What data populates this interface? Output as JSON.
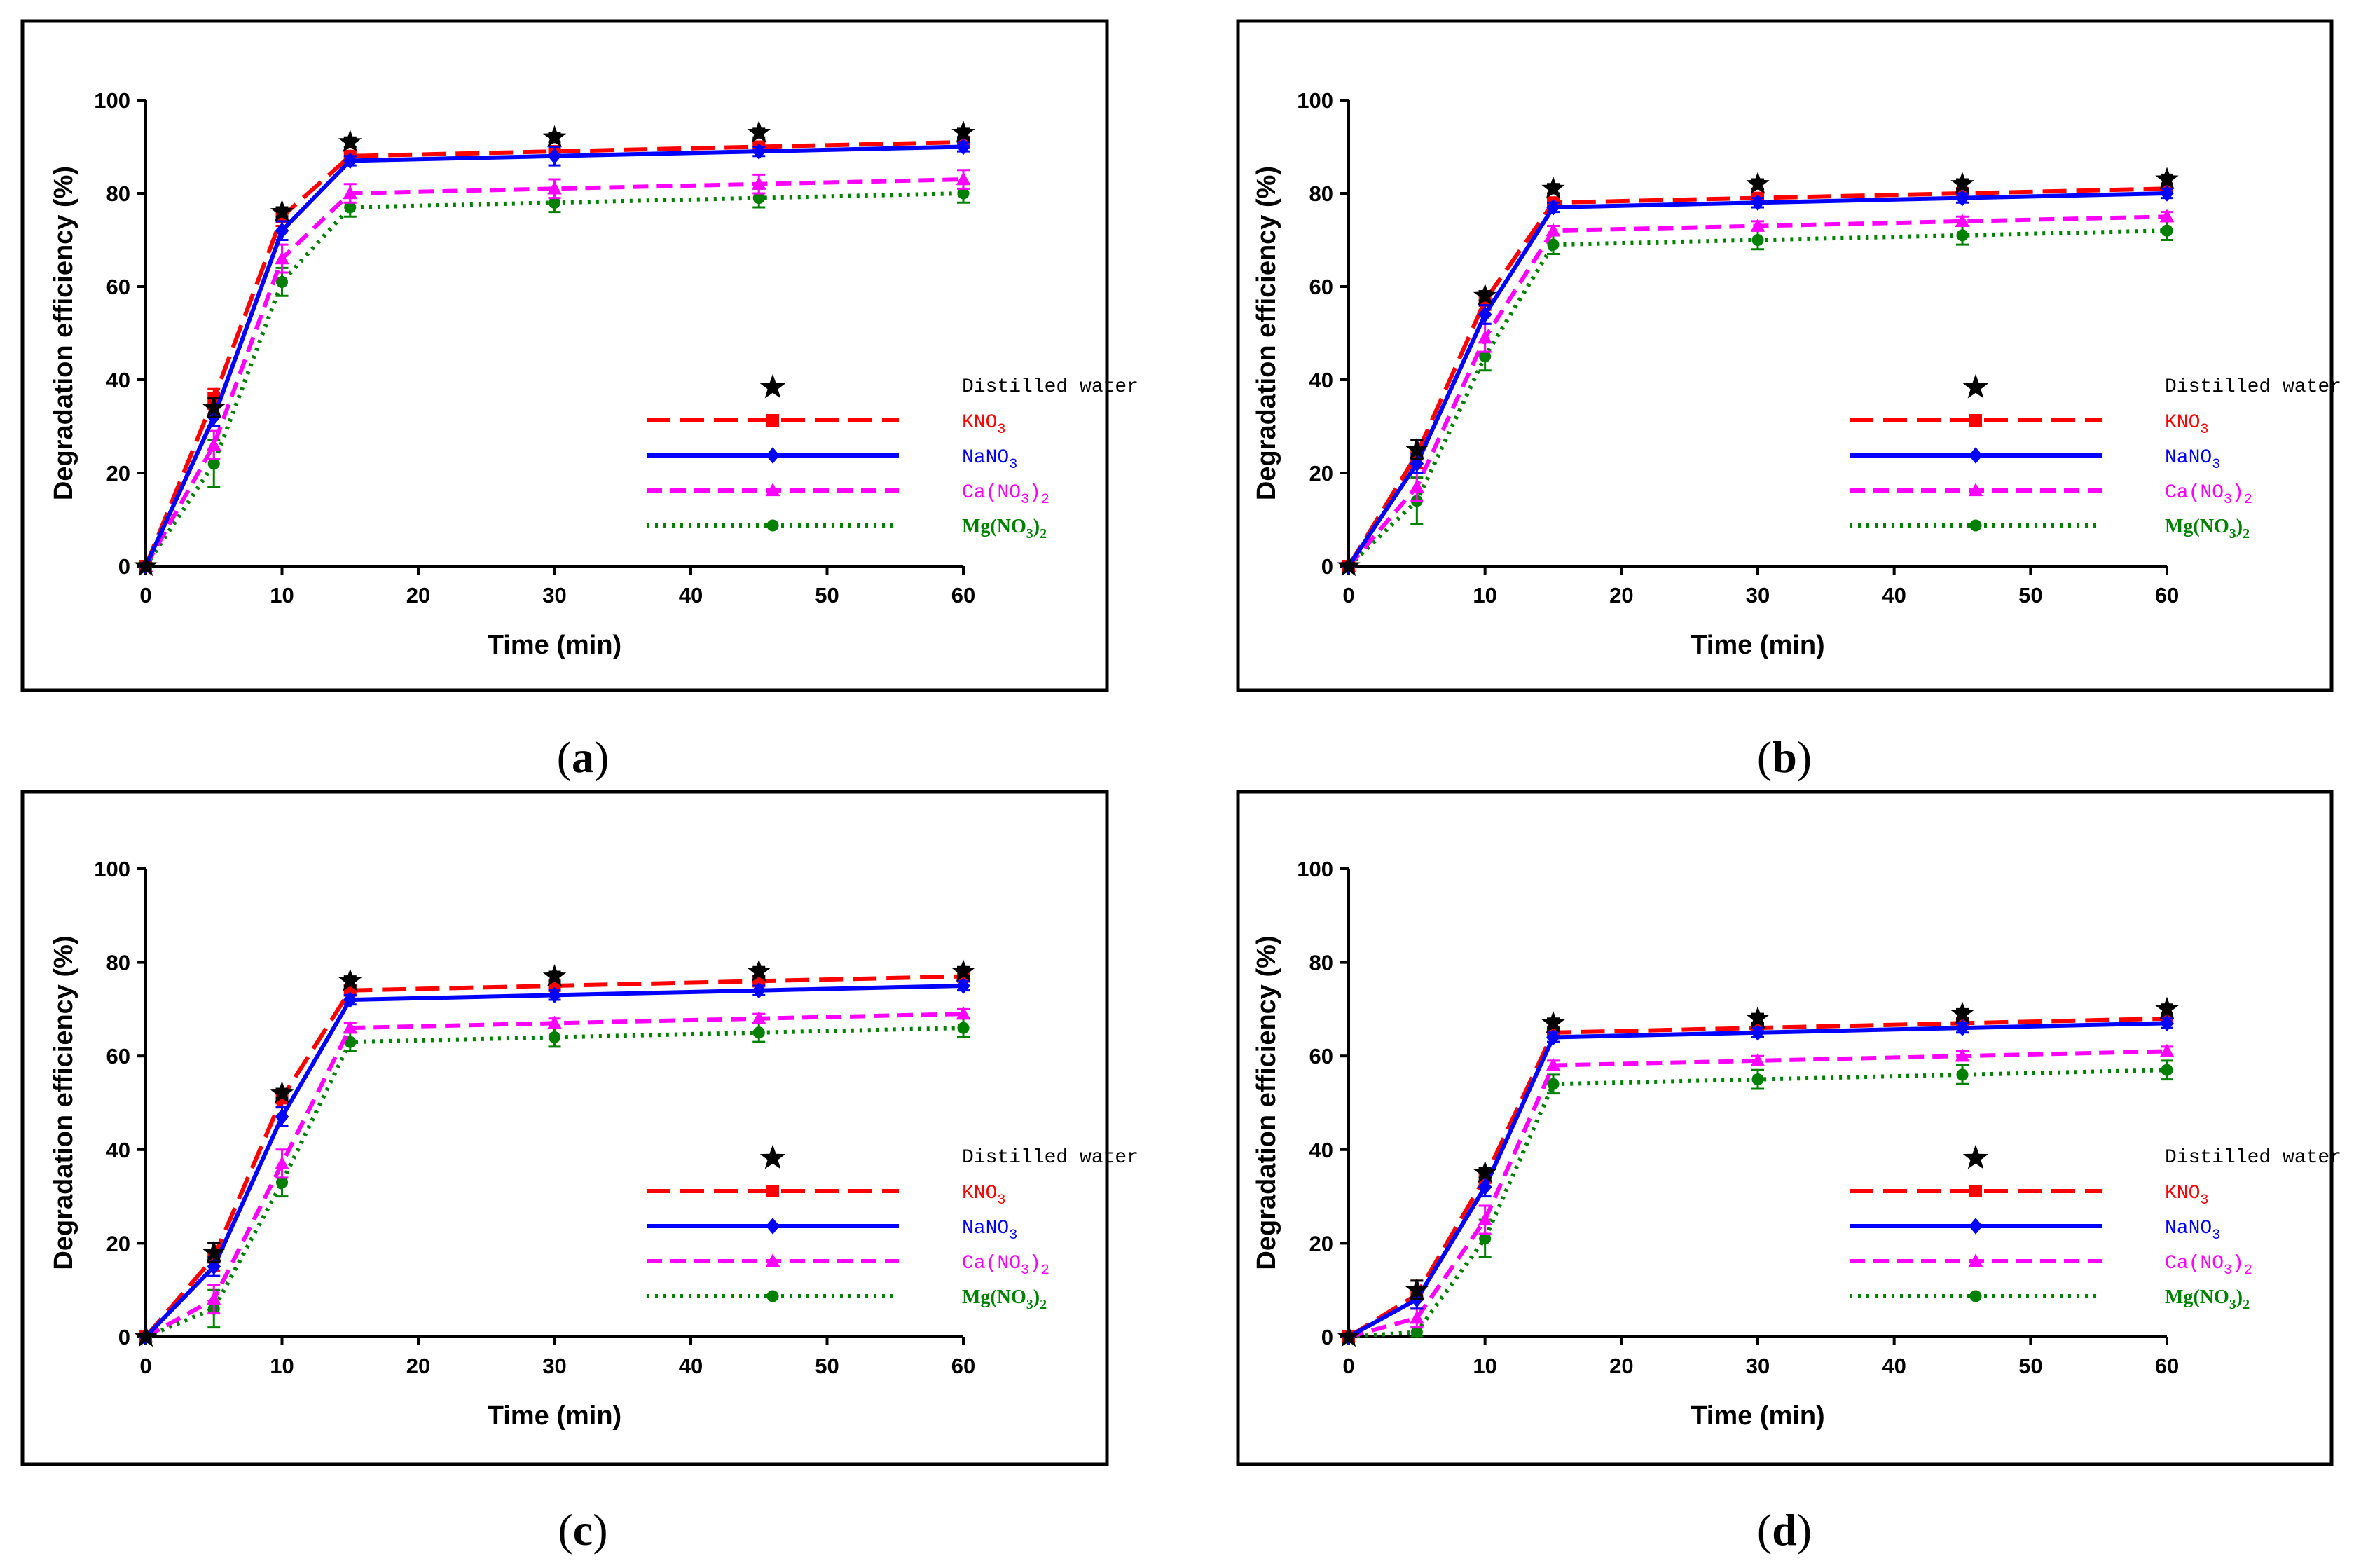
{
  "colors": {
    "distilled_water": "#000000",
    "KNO3": "#ff0000",
    "NaNO3": "#0000ff",
    "CaNO32": "#ff00ff",
    "MgNO32": "#008000"
  },
  "chart_data": [
    {
      "type": "line",
      "panel_label": "a",
      "caption": "(a)",
      "xlabel": "Time (min)",
      "ylabel": "Degradation efficiency (%)",
      "xlim": [
        0,
        60
      ],
      "ylim": [
        0,
        100
      ],
      "x_ticks": [
        "0",
        "10",
        "20",
        "30",
        "40",
        "50",
        "60"
      ],
      "y_ticks": [
        "0",
        "20",
        "40",
        "60",
        "80",
        "100"
      ],
      "legend_position": "lower-right",
      "x": [
        0,
        5,
        10,
        15,
        30,
        45,
        60
      ],
      "series": [
        {
          "key": "distilled_water",
          "name": "Distilled water",
          "label_parts": [
            "Distilled water"
          ],
          "marker": "star",
          "line": "none",
          "values": [
            0,
            34,
            76,
            91,
            92,
            93,
            93
          ],
          "errors": [
            0,
            2,
            1,
            1,
            1,
            1,
            1
          ]
        },
        {
          "key": "KNO3",
          "name": "KNO3",
          "label_parts": [
            "KNO",
            "3"
          ],
          "marker": "square",
          "line": "longdash",
          "values": [
            0,
            36,
            75,
            88,
            89,
            90,
            91
          ],
          "errors": [
            0,
            2,
            2,
            1,
            1,
            1,
            1
          ]
        },
        {
          "key": "NaNO3",
          "name": "NaNO3",
          "label_parts": [
            "NaNO",
            "3"
          ],
          "marker": "diamond",
          "line": "solid",
          "values": [
            0,
            32,
            72,
            87,
            88,
            89,
            90
          ],
          "errors": [
            0,
            2,
            2,
            1,
            2,
            1,
            1
          ]
        },
        {
          "key": "CaNO32",
          "name": "Ca(NO3)2",
          "label_parts": [
            "Ca(NO",
            "3",
            ")",
            "2"
          ],
          "marker": "triangle",
          "line": "dash",
          "values": [
            0,
            26,
            66,
            80,
            81,
            82,
            83
          ],
          "errors": [
            0,
            3,
            3,
            2,
            2,
            2,
            2
          ]
        },
        {
          "key": "MgNO32",
          "name": "Mg(NO3)2",
          "label_parts": [
            "Mg(NO",
            "3",
            ")",
            "2"
          ],
          "marker": "circle",
          "line": "dot",
          "values": [
            0,
            22,
            61,
            77,
            78,
            79,
            80
          ],
          "errors": [
            0,
            5,
            3,
            2,
            2,
            2,
            2
          ]
        }
      ]
    },
    {
      "type": "line",
      "panel_label": "b",
      "caption": "(b)",
      "xlabel": "Time (min)",
      "ylabel": "Degradation efficiency (%)",
      "xlim": [
        0,
        60
      ],
      "ylim": [
        0,
        100
      ],
      "x_ticks": [
        "0",
        "10",
        "20",
        "30",
        "40",
        "50",
        "60"
      ],
      "y_ticks": [
        "0",
        "20",
        "40",
        "60",
        "80",
        "100"
      ],
      "legend_position": "lower-right",
      "x": [
        0,
        5,
        10,
        15,
        30,
        45,
        60
      ],
      "series": [
        {
          "key": "distilled_water",
          "name": "Distilled water",
          "label_parts": [
            "Distilled water"
          ],
          "marker": "star",
          "line": "none",
          "values": [
            0,
            25,
            58,
            81,
            82,
            82,
            83
          ],
          "errors": [
            0,
            2,
            1,
            1,
            1,
            1,
            1
          ]
        },
        {
          "key": "KNO3",
          "name": "KNO3",
          "label_parts": [
            "KNO",
            "3"
          ],
          "marker": "square",
          "line": "longdash",
          "values": [
            0,
            24,
            57,
            78,
            79,
            80,
            81
          ],
          "errors": [
            0,
            3,
            2,
            1,
            1,
            1,
            1
          ]
        },
        {
          "key": "NaNO3",
          "name": "NaNO3",
          "label_parts": [
            "NaNO",
            "3"
          ],
          "marker": "diamond",
          "line": "solid",
          "values": [
            0,
            22,
            54,
            77,
            78,
            79,
            80
          ],
          "errors": [
            0,
            2,
            2,
            1,
            1,
            1,
            1
          ]
        },
        {
          "key": "CaNO32",
          "name": "Ca(NO3)2",
          "label_parts": [
            "Ca(NO",
            "3",
            ")",
            "2"
          ],
          "marker": "triangle",
          "line": "dash",
          "values": [
            0,
            17,
            49,
            72,
            73,
            74,
            75
          ],
          "errors": [
            0,
            3,
            3,
            1,
            1,
            1,
            1
          ]
        },
        {
          "key": "MgNO32",
          "name": "Mg(NO3)2",
          "label_parts": [
            "Mg(NO",
            "3",
            ")",
            "2"
          ],
          "marker": "circle",
          "line": "dot",
          "values": [
            0,
            14,
            45,
            69,
            70,
            71,
            72
          ],
          "errors": [
            0,
            5,
            3,
            2,
            2,
            2,
            2
          ]
        }
      ]
    },
    {
      "type": "line",
      "panel_label": "c",
      "caption": "(c)",
      "xlabel": "Time (min)",
      "ylabel": "Degradation efficiency (%)",
      "xlim": [
        0,
        60
      ],
      "ylim": [
        0,
        100
      ],
      "x_ticks": [
        "0",
        "10",
        "20",
        "30",
        "40",
        "50",
        "60"
      ],
      "y_ticks": [
        "0",
        "20",
        "40",
        "60",
        "80",
        "100"
      ],
      "legend_position": "lower-right",
      "x": [
        0,
        5,
        10,
        15,
        30,
        45,
        60
      ],
      "series": [
        {
          "key": "distilled_water",
          "name": "Distilled water",
          "label_parts": [
            "Distilled water"
          ],
          "marker": "star",
          "line": "none",
          "values": [
            0,
            18,
            52,
            76,
            77,
            78,
            78
          ],
          "errors": [
            0,
            2,
            1,
            1,
            1,
            1,
            1
          ]
        },
        {
          "key": "KNO3",
          "name": "KNO3",
          "label_parts": [
            "KNO",
            "3"
          ],
          "marker": "square",
          "line": "longdash",
          "values": [
            0,
            17,
            51,
            74,
            75,
            76,
            77
          ],
          "errors": [
            0,
            3,
            2,
            1,
            1,
            1,
            1
          ]
        },
        {
          "key": "NaNO3",
          "name": "NaNO3",
          "label_parts": [
            "NaNO",
            "3"
          ],
          "marker": "diamond",
          "line": "solid",
          "values": [
            0,
            15,
            47,
            72,
            73,
            74,
            75
          ],
          "errors": [
            0,
            2,
            2,
            1,
            1,
            1,
            1
          ]
        },
        {
          "key": "CaNO32",
          "name": "Ca(NO3)2",
          "label_parts": [
            "Ca(NO",
            "3",
            ")",
            "2"
          ],
          "marker": "triangle",
          "line": "dash",
          "values": [
            0,
            8,
            37,
            66,
            67,
            68,
            69
          ],
          "errors": [
            0,
            3,
            3,
            1,
            1,
            1,
            1
          ]
        },
        {
          "key": "MgNO32",
          "name": "Mg(NO3)2",
          "label_parts": [
            "Mg(NO",
            "3",
            ")",
            "2"
          ],
          "marker": "circle",
          "line": "dot",
          "values": [
            0,
            6,
            33,
            63,
            64,
            65,
            66
          ],
          "errors": [
            0,
            4,
            3,
            2,
            2,
            2,
            2
          ]
        }
      ]
    },
    {
      "type": "line",
      "panel_label": "d",
      "caption": "(d)",
      "xlabel": "Time (min)",
      "ylabel": "Degradation efficiency (%)",
      "xlim": [
        0,
        60
      ],
      "ylim": [
        0,
        100
      ],
      "x_ticks": [
        "0",
        "10",
        "20",
        "30",
        "40",
        "50",
        "60"
      ],
      "y_ticks": [
        "0",
        "20",
        "40",
        "60",
        "80",
        "100"
      ],
      "legend_position": "lower-right",
      "x": [
        0,
        5,
        10,
        15,
        30,
        45,
        60
      ],
      "series": [
        {
          "key": "distilled_water",
          "name": "Distilled water",
          "label_parts": [
            "Distilled water"
          ],
          "marker": "star",
          "line": "none",
          "values": [
            0,
            10,
            35,
            67,
            68,
            69,
            70
          ],
          "errors": [
            0,
            2,
            1,
            1,
            1,
            1,
            1
          ]
        },
        {
          "key": "KNO3",
          "name": "KNO3",
          "label_parts": [
            "KNO",
            "3"
          ],
          "marker": "square",
          "line": "longdash",
          "values": [
            0,
            9,
            34,
            65,
            66,
            67,
            68
          ],
          "errors": [
            0,
            3,
            2,
            1,
            1,
            1,
            1
          ]
        },
        {
          "key": "NaNO3",
          "name": "NaNO3",
          "label_parts": [
            "NaNO",
            "3"
          ],
          "marker": "diamond",
          "line": "solid",
          "values": [
            0,
            8,
            32,
            64,
            65,
            66,
            67
          ],
          "errors": [
            0,
            2,
            2,
            1,
            1,
            1,
            1
          ]
        },
        {
          "key": "CaNO32",
          "name": "Ca(NO3)2",
          "label_parts": [
            "Ca(NO",
            "3",
            ")",
            "2"
          ],
          "marker": "triangle",
          "line": "dash",
          "values": [
            0,
            4,
            25,
            58,
            59,
            60,
            61
          ],
          "errors": [
            0,
            2,
            3,
            1,
            1,
            1,
            1
          ]
        },
        {
          "key": "MgNO32",
          "name": "Mg(NO3)2",
          "label_parts": [
            "Mg(NO",
            "3",
            ")",
            "2"
          ],
          "marker": "circle",
          "line": "dot",
          "values": [
            0,
            1,
            21,
            54,
            55,
            56,
            57
          ],
          "errors": [
            0,
            1,
            4,
            2,
            2,
            2,
            2
          ]
        }
      ]
    }
  ]
}
